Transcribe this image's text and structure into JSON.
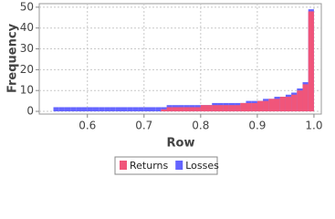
{
  "chart_data": {
    "type": "histogram",
    "x_label": "Row",
    "y_label": "Frequency",
    "bins": [
      0.54,
      0.55,
      0.56,
      0.57,
      0.58,
      0.59,
      0.6,
      0.61,
      0.62,
      0.63,
      0.64,
      0.65,
      0.66,
      0.67,
      0.68,
      0.69,
      0.7,
      0.71,
      0.72,
      0.73,
      0.74,
      0.75,
      0.76,
      0.77,
      0.78,
      0.79,
      0.8,
      0.81,
      0.82,
      0.83,
      0.84,
      0.85,
      0.86,
      0.87,
      0.88,
      0.89,
      0.9,
      0.91,
      0.92,
      0.93,
      0.94,
      0.95,
      0.96,
      0.97,
      0.98,
      0.99,
      1
    ],
    "series": [
      {
        "name": "Losses",
        "color": "#6464ff",
        "values": [
          2,
          2,
          2,
          2,
          2,
          2,
          2,
          2,
          2,
          2,
          2,
          2,
          2,
          2,
          2,
          2,
          2,
          2,
          2,
          2,
          3,
          3,
          3,
          3,
          3,
          3,
          3,
          3,
          4,
          4,
          4,
          4,
          4,
          4,
          5,
          5,
          5,
          6,
          6,
          7,
          7,
          8,
          9,
          11,
          14,
          49
        ]
      },
      {
        "name": "Returns",
        "color": "#f0557a",
        "values": [
          0,
          0,
          0,
          0,
          0,
          0,
          0,
          0,
          0,
          0,
          0,
          0,
          0,
          0,
          0,
          0,
          0,
          0,
          0,
          1,
          2,
          2,
          2,
          2,
          2,
          2,
          3,
          3,
          3,
          3,
          3,
          3,
          3,
          4,
          4,
          4,
          5,
          5,
          6,
          6,
          7,
          7,
          8,
          10,
          13,
          48
        ]
      }
    ],
    "legend_order": [
      1,
      0
    ],
    "xlim": [
      0.515,
      1.013
    ],
    "ylim": [
      -1.3,
      51.7
    ],
    "xticks": [
      0.6,
      0.7,
      0.8,
      0.9,
      {
        "value": 1,
        "label": "1.0"
      }
    ],
    "yticks": [
      0,
      10,
      20,
      30,
      40,
      50
    ],
    "grid": true,
    "legend": "bottom"
  }
}
